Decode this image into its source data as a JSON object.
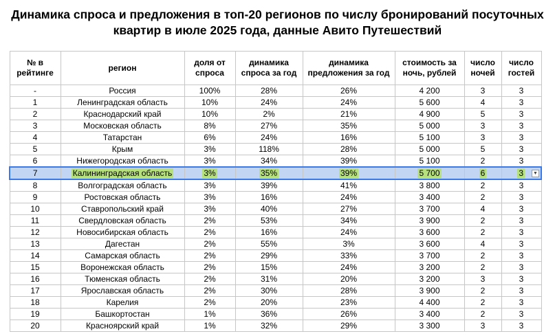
{
  "title_line1": "Динамика спроса и предложения в топ-20 регионов по числу бронирований посуточных",
  "title_line2": "квартир в июле 2025 года, данные Авито Путешествий",
  "headers": {
    "rank": "№ в рейтинге",
    "region": "регион",
    "demand_share": "доля от спроса",
    "demand_dyn": "динамика спроса за год",
    "supply_dyn": "динамика предложения за год",
    "price": "стоимость за ночь, рублей",
    "nights": "число ночей",
    "guests": "число гостей"
  },
  "rows": [
    {
      "rank": "-",
      "region": "Россия",
      "share": "100%",
      "demand": "28%",
      "supply": "26%",
      "price": "4 200",
      "nights": "3",
      "guests": "3"
    },
    {
      "rank": "1",
      "region": "Ленинградская область",
      "share": "10%",
      "demand": "24%",
      "supply": "24%",
      "price": "5 600",
      "nights": "4",
      "guests": "3"
    },
    {
      "rank": "2",
      "region": "Краснодарский край",
      "share": "10%",
      "demand": "2%",
      "supply": "21%",
      "price": "4 900",
      "nights": "5",
      "guests": "3"
    },
    {
      "rank": "3",
      "region": "Московская область",
      "share": "8%",
      "demand": "27%",
      "supply": "35%",
      "price": "5 000",
      "nights": "3",
      "guests": "3"
    },
    {
      "rank": "4",
      "region": "Татарстан",
      "share": "6%",
      "demand": "24%",
      "supply": "16%",
      "price": "5 100",
      "nights": "3",
      "guests": "3"
    },
    {
      "rank": "5",
      "region": "Крым",
      "share": "3%",
      "demand": "118%",
      "supply": "28%",
      "price": "5 000",
      "nights": "5",
      "guests": "3"
    },
    {
      "rank": "6",
      "region": "Нижегородская область",
      "share": "3%",
      "demand": "34%",
      "supply": "39%",
      "price": "5 100",
      "nights": "2",
      "guests": "3"
    },
    {
      "rank": "7",
      "region": "Калининградская область",
      "share": "3%",
      "demand": "35%",
      "supply": "39%",
      "price": "5 700",
      "nights": "6",
      "guests": "3"
    },
    {
      "rank": "8",
      "region": "Волгоградская область",
      "share": "3%",
      "demand": "39%",
      "supply": "41%",
      "price": "3 800",
      "nights": "2",
      "guests": "3"
    },
    {
      "rank": "9",
      "region": "Ростовская область",
      "share": "3%",
      "demand": "16%",
      "supply": "24%",
      "price": "3 400",
      "nights": "2",
      "guests": "3"
    },
    {
      "rank": "10",
      "region": "Ставропольский край",
      "share": "3%",
      "demand": "40%",
      "supply": "27%",
      "price": "3 700",
      "nights": "4",
      "guests": "3"
    },
    {
      "rank": "11",
      "region": "Свердловская область",
      "share": "2%",
      "demand": "53%",
      "supply": "34%",
      "price": "3 900",
      "nights": "2",
      "guests": "3"
    },
    {
      "rank": "12",
      "region": "Новосибирская область",
      "share": "2%",
      "demand": "16%",
      "supply": "24%",
      "price": "3 600",
      "nights": "2",
      "guests": "3"
    },
    {
      "rank": "13",
      "region": "Дагестан",
      "share": "2%",
      "demand": "55%",
      "supply": "3%",
      "price": "3 600",
      "nights": "4",
      "guests": "3"
    },
    {
      "rank": "14",
      "region": "Самарская область",
      "share": "2%",
      "demand": "29%",
      "supply": "33%",
      "price": "3 700",
      "nights": "2",
      "guests": "3"
    },
    {
      "rank": "15",
      "region": "Воронежская область",
      "share": "2%",
      "demand": "15%",
      "supply": "24%",
      "price": "3 200",
      "nights": "2",
      "guests": "3"
    },
    {
      "rank": "16",
      "region": "Тюменская область",
      "share": "2%",
      "demand": "31%",
      "supply": "20%",
      "price": "3 200",
      "nights": "3",
      "guests": "3"
    },
    {
      "rank": "17",
      "region": "Ярославская область",
      "share": "2%",
      "demand": "30%",
      "supply": "28%",
      "price": "3 900",
      "nights": "2",
      "guests": "3"
    },
    {
      "rank": "18",
      "region": "Карелия",
      "share": "2%",
      "demand": "20%",
      "supply": "23%",
      "price": "4 400",
      "nights": "2",
      "guests": "3"
    },
    {
      "rank": "19",
      "region": "Башкортостан",
      "share": "1%",
      "demand": "36%",
      "supply": "26%",
      "price": "3 400",
      "nights": "2",
      "guests": "3"
    },
    {
      "rank": "20",
      "region": "Красноярский край",
      "share": "1%",
      "demand": "32%",
      "supply": "29%",
      "price": "3 300",
      "nights": "3",
      "guests": "3"
    }
  ],
  "selected_row": 7,
  "colors": {
    "selection": "#c2d6f3",
    "selection_border": "#3b78e7",
    "highlight": "#b6e07e",
    "grid": "#c6c6c6"
  },
  "dropdown_icon": "chevron-down-icon"
}
